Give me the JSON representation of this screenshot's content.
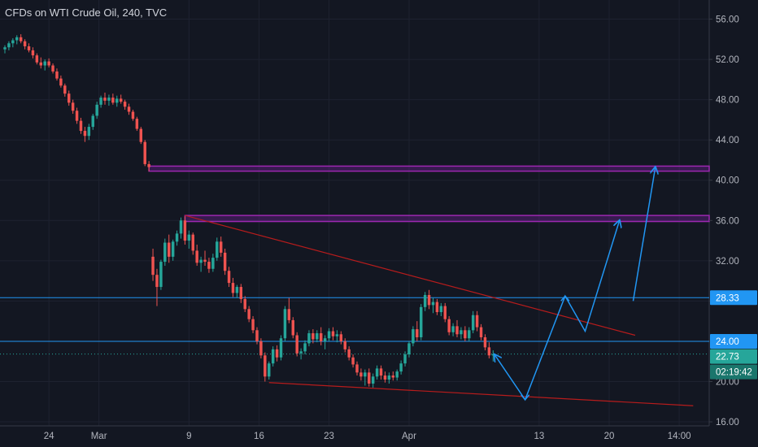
{
  "header": {
    "title": "CFDs on WTI Crude Oil, 240, TVC"
  },
  "chart_data": {
    "type": "candlestick",
    "x_ticks": [
      {
        "label": "24",
        "x": 0
      },
      {
        "label": "Mar",
        "x": 5
      },
      {
        "label": "9",
        "x": 14
      },
      {
        "label": "16",
        "x": 21
      },
      {
        "label": "23",
        "x": 28
      },
      {
        "label": "Apr",
        "x": 36
      },
      {
        "label": "13",
        "x": 49
      },
      {
        "label": "20",
        "x": 56
      },
      {
        "label": "14:00",
        "x": 63
      }
    ],
    "x_range": [
      -4.4,
      66.0
    ],
    "y_ticks": [
      "16.00",
      "20.00",
      "24.00",
      "28.00",
      "32.00",
      "36.00",
      "40.00",
      "44.00",
      "48.00",
      "52.00",
      "56.00"
    ],
    "y_range": [
      15.6,
      57.9
    ],
    "grid": true,
    "candles": [
      [
        -4.4,
        53.0,
        53.4,
        52.6,
        53.2
      ],
      [
        -4.0,
        53.2,
        53.8,
        52.9,
        53.6
      ],
      [
        -3.6,
        53.6,
        54.1,
        53.2,
        53.9
      ],
      [
        -3.2,
        53.9,
        54.4,
        53.5,
        54.2
      ],
      [
        -2.8,
        54.2,
        54.5,
        53.6,
        53.8
      ],
      [
        -2.4,
        53.8,
        54.0,
        53.0,
        53.3
      ],
      [
        -2.0,
        53.3,
        53.6,
        52.7,
        52.9
      ],
      [
        -1.6,
        52.9,
        53.2,
        52.1,
        52.4
      ],
      [
        -1.2,
        52.4,
        52.6,
        51.5,
        51.7
      ],
      [
        -0.8,
        51.7,
        52.2,
        51.1,
        51.4
      ],
      [
        -0.4,
        51.4,
        52.0,
        50.9,
        51.8
      ],
      [
        0.0,
        51.8,
        52.1,
        51.2,
        51.4
      ],
      [
        0.4,
        51.4,
        51.6,
        50.6,
        50.8
      ],
      [
        0.8,
        50.8,
        51.1,
        49.9,
        50.1
      ],
      [
        1.2,
        50.1,
        50.4,
        49.2,
        49.4
      ],
      [
        1.6,
        49.4,
        49.6,
        48.3,
        48.6
      ],
      [
        2.0,
        48.6,
        48.9,
        47.4,
        47.7
      ],
      [
        2.4,
        47.7,
        48.0,
        46.6,
        46.9
      ],
      [
        2.8,
        46.9,
        47.2,
        45.6,
        45.9
      ],
      [
        3.2,
        45.9,
        46.2,
        44.6,
        44.9
      ],
      [
        3.6,
        44.9,
        45.3,
        43.8,
        44.4
      ],
      [
        4.0,
        44.4,
        45.6,
        44.0,
        45.3
      ],
      [
        4.4,
        45.3,
        46.6,
        45.0,
        46.4
      ],
      [
        4.8,
        46.4,
        47.8,
        46.1,
        47.5
      ],
      [
        5.2,
        47.5,
        48.4,
        47.2,
        48.2
      ],
      [
        5.6,
        48.2,
        48.7,
        47.5,
        47.9
      ],
      [
        6.0,
        47.9,
        48.5,
        47.4,
        48.2
      ],
      [
        6.4,
        48.2,
        48.6,
        47.5,
        47.7
      ],
      [
        6.8,
        47.7,
        48.4,
        47.3,
        48.1
      ],
      [
        7.2,
        48.1,
        48.5,
        47.6,
        47.8
      ],
      [
        7.6,
        47.8,
        48.0,
        47.0,
        47.3
      ],
      [
        8.0,
        47.3,
        47.6,
        46.5,
        46.8
      ],
      [
        8.4,
        46.8,
        47.0,
        45.9,
        46.1
      ],
      [
        8.8,
        46.1,
        46.3,
        44.9,
        45.1
      ],
      [
        9.2,
        45.1,
        45.3,
        43.6,
        43.8
      ],
      [
        9.6,
        43.8,
        44.0,
        41.4,
        41.6
      ],
      [
        10.0,
        41.6,
        41.9,
        40.9,
        41.3
      ],
      [
        10.4,
        32.4,
        33.2,
        30.0,
        30.6
      ],
      [
        10.8,
        30.6,
        31.2,
        27.5,
        29.4
      ],
      [
        11.2,
        29.4,
        32.1,
        29.1,
        31.9
      ],
      [
        11.6,
        31.9,
        34.2,
        31.5,
        33.8
      ],
      [
        12.0,
        33.8,
        34.6,
        31.8,
        32.4
      ],
      [
        12.4,
        32.4,
        34.1,
        32.0,
        33.9
      ],
      [
        12.8,
        33.9,
        35.0,
        33.5,
        34.7
      ],
      [
        13.2,
        34.7,
        36.3,
        34.2,
        36.0
      ],
      [
        13.6,
        36.0,
        36.4,
        33.6,
        34.0
      ],
      [
        14.0,
        34.0,
        35.0,
        33.2,
        34.6
      ],
      [
        14.4,
        34.6,
        34.8,
        32.6,
        33.0
      ],
      [
        14.8,
        33.0,
        33.6,
        31.5,
        31.8
      ],
      [
        15.2,
        31.8,
        32.4,
        30.9,
        32.1
      ],
      [
        15.6,
        32.1,
        33.0,
        31.5,
        31.9
      ],
      [
        16.0,
        31.9,
        32.3,
        30.8,
        31.2
      ],
      [
        16.4,
        31.2,
        32.7,
        30.9,
        32.3
      ],
      [
        16.8,
        32.3,
        34.3,
        32.0,
        33.9
      ],
      [
        17.2,
        33.9,
        34.4,
        32.4,
        32.8
      ],
      [
        17.6,
        32.8,
        33.2,
        30.6,
        31.0
      ],
      [
        18.0,
        31.0,
        31.4,
        29.4,
        29.8
      ],
      [
        18.4,
        29.8,
        30.3,
        28.4,
        28.8
      ],
      [
        18.8,
        28.8,
        29.6,
        28.3,
        29.4
      ],
      [
        19.2,
        29.4,
        29.7,
        27.8,
        28.2
      ],
      [
        19.6,
        28.2,
        28.5,
        26.9,
        27.2
      ],
      [
        20.0,
        27.2,
        27.5,
        25.9,
        26.2
      ],
      [
        20.4,
        26.2,
        26.5,
        24.8,
        25.1
      ],
      [
        20.8,
        25.1,
        25.4,
        23.7,
        24.0
      ],
      [
        21.2,
        24.0,
        24.3,
        22.3,
        22.6
      ],
      [
        21.6,
        22.6,
        22.9,
        20.0,
        20.5
      ],
      [
        22.0,
        20.5,
        22.0,
        20.2,
        21.8
      ],
      [
        22.4,
        21.8,
        23.5,
        21.5,
        23.2
      ],
      [
        22.8,
        23.2,
        23.6,
        22.0,
        22.4
      ],
      [
        23.2,
        22.4,
        24.6,
        22.1,
        24.3
      ],
      [
        23.6,
        24.3,
        27.5,
        24.0,
        27.2
      ],
      [
        24.0,
        27.2,
        28.3,
        25.8,
        26.1
      ],
      [
        24.4,
        26.1,
        26.4,
        24.3,
        24.6
      ],
      [
        24.8,
        24.6,
        24.9,
        22.5,
        22.8
      ],
      [
        25.2,
        22.8,
        23.3,
        22.2,
        23.0
      ],
      [
        25.6,
        23.0,
        24.1,
        22.7,
        23.8
      ],
      [
        26.0,
        23.8,
        25.1,
        23.5,
        24.8
      ],
      [
        26.4,
        24.8,
        25.2,
        23.8,
        24.2
      ],
      [
        26.8,
        24.2,
        25.1,
        23.9,
        24.8
      ],
      [
        27.2,
        24.8,
        25.4,
        23.6,
        24.0
      ],
      [
        27.6,
        24.0,
        24.6,
        23.2,
        24.3
      ],
      [
        28.0,
        24.3,
        25.3,
        24.0,
        25.0
      ],
      [
        28.4,
        25.0,
        25.4,
        24.1,
        24.5
      ],
      [
        28.8,
        24.5,
        25.1,
        23.9,
        24.7
      ],
      [
        29.2,
        24.7,
        25.0,
        23.7,
        24.0
      ],
      [
        29.6,
        24.0,
        24.3,
        22.9,
        23.2
      ],
      [
        30.0,
        23.2,
        23.5,
        22.1,
        22.4
      ],
      [
        30.4,
        22.4,
        22.7,
        21.4,
        21.7
      ],
      [
        30.8,
        21.7,
        22.0,
        20.6,
        20.9
      ],
      [
        31.2,
        20.9,
        21.3,
        20.1,
        20.5
      ],
      [
        31.6,
        20.5,
        21.2,
        19.6,
        20.9
      ],
      [
        32.0,
        20.9,
        21.3,
        19.5,
        19.8
      ],
      [
        32.4,
        19.8,
        20.8,
        19.4,
        20.5
      ],
      [
        32.8,
        20.5,
        21.6,
        20.2,
        21.3
      ],
      [
        33.2,
        21.3,
        21.6,
        20.2,
        20.6
      ],
      [
        33.6,
        20.6,
        21.0,
        19.9,
        20.2
      ],
      [
        34.0,
        20.2,
        20.9,
        19.8,
        20.6
      ],
      [
        34.4,
        20.6,
        21.0,
        20.1,
        20.4
      ],
      [
        34.8,
        20.4,
        21.2,
        20.1,
        21.0
      ],
      [
        35.2,
        21.0,
        22.1,
        20.7,
        21.8
      ],
      [
        35.6,
        21.8,
        23.0,
        21.5,
        22.7
      ],
      [
        36.0,
        22.7,
        24.0,
        22.4,
        23.8
      ],
      [
        36.4,
        23.8,
        25.5,
        23.5,
        25.2
      ],
      [
        36.8,
        25.2,
        26.0,
        24.0,
        24.4
      ],
      [
        37.2,
        24.4,
        27.7,
        24.1,
        27.4
      ],
      [
        37.6,
        27.4,
        28.9,
        27.0,
        28.6
      ],
      [
        38.0,
        28.6,
        29.1,
        27.2,
        27.6
      ],
      [
        38.4,
        27.6,
        28.3,
        26.8,
        27.9
      ],
      [
        38.8,
        27.9,
        28.2,
        26.6,
        26.9
      ],
      [
        39.2,
        26.9,
        27.8,
        26.5,
        27.5
      ],
      [
        39.6,
        27.5,
        27.8,
        25.9,
        26.2
      ],
      [
        40.0,
        26.2,
        26.5,
        24.6,
        24.9
      ],
      [
        40.4,
        24.9,
        25.8,
        24.5,
        25.5
      ],
      [
        40.8,
        25.5,
        26.1,
        24.4,
        24.7
      ],
      [
        41.2,
        24.7,
        25.4,
        24.2,
        25.1
      ],
      [
        41.6,
        25.1,
        25.5,
        24.0,
        24.3
      ],
      [
        42.0,
        24.3,
        25.4,
        24.0,
        25.1
      ],
      [
        42.4,
        25.1,
        27.0,
        24.8,
        26.6
      ],
      [
        42.8,
        26.6,
        27.0,
        25.0,
        25.4
      ],
      [
        43.2,
        25.4,
        25.7,
        24.1,
        24.4
      ],
      [
        43.6,
        24.4,
        24.7,
        23.1,
        23.4
      ],
      [
        44.0,
        23.4,
        23.9,
        22.3,
        22.6
      ],
      [
        44.4,
        22.6,
        23.1,
        22.0,
        22.7
      ]
    ],
    "annotations": {
      "zones": [
        [
          40.9,
          41.4
        ],
        [
          35.9,
          36.5
        ]
      ],
      "h_lines": [
        28.33,
        24.0
      ],
      "dotted_line": 22.73,
      "trend_top": [
        [
          13.6,
          36.5
        ],
        [
          58.6,
          24.6
        ]
      ],
      "trend_bottom": [
        [
          22.0,
          19.9
        ],
        [
          64.4,
          17.6
        ]
      ],
      "forecast_path": [
        [
          44.6,
          22.6
        ],
        [
          47.6,
          18.2
        ],
        [
          51.6,
          28.5
        ],
        [
          53.6,
          25.0
        ],
        [
          57.0,
          35.9
        ]
      ],
      "forecast_arrow": [
        [
          58.4,
          28.0
        ],
        [
          60.6,
          41.2
        ]
      ],
      "last_price": "22.73",
      "countdown": "02:19:42",
      "label_top_line": "28.33",
      "label_bottom_line": "24.00"
    },
    "colors": {
      "up": "#26a69a",
      "down": "#ef5350",
      "background": "#131722",
      "grid": "#1e2230",
      "text": "#b2b5be",
      "zone": "#7b1fa2",
      "trend": "#b71c1c",
      "hline": "#2196f3",
      "forecast": "#2196f3",
      "last_price_bg": "#26a69a",
      "countdown_bg": "#1a766c"
    }
  }
}
